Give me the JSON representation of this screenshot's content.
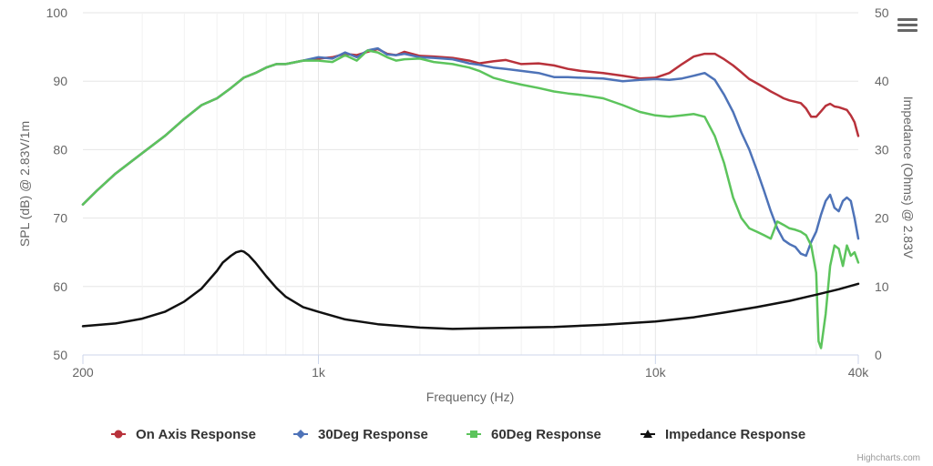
{
  "chart_data": {
    "type": "line",
    "xlabel": "Frequency (Hz)",
    "ylabel": "SPL (dB) @ 2.83V/1m",
    "y2label": "Impedance (Ohms) @ 2.83V",
    "x_scale": "log",
    "xlim": [
      200,
      40000
    ],
    "ylim": [
      50,
      100
    ],
    "y2lim": [
      0,
      50
    ],
    "x_ticks": [
      200,
      1000,
      10000,
      40000
    ],
    "x_tick_labels": [
      "200",
      "1k",
      "10k",
      "40k"
    ],
    "y_ticks": [
      50,
      60,
      70,
      80,
      90,
      100
    ],
    "y2_ticks": [
      0,
      10,
      20,
      30,
      40,
      50
    ],
    "grid": "horizontal",
    "legend": "bottom",
    "series": [
      {
        "name": "On Axis Response",
        "color": "#b8323b",
        "axis": "left",
        "marker": "circle",
        "x": [
          200,
          220,
          250,
          300,
          350,
          400,
          450,
          500,
          550,
          600,
          650,
          700,
          750,
          800,
          900,
          1000,
          1100,
          1200,
          1300,
          1400,
          1500,
          1600,
          1700,
          1800,
          2000,
          2200,
          2500,
          2800,
          3000,
          3300,
          3600,
          4000,
          4500,
          5000,
          5500,
          6000,
          7000,
          8000,
          9000,
          10000,
          11000,
          12000,
          13000,
          14000,
          15000,
          16000,
          17000,
          18000,
          19000,
          20000,
          21000,
          22000,
          23000,
          24000,
          25000,
          26000,
          27000,
          28000,
          29000,
          30000,
          31000,
          32000,
          33000,
          34000,
          35000,
          36000,
          37000,
          38000,
          39000,
          40000
        ],
        "y": [
          72,
          74,
          76.5,
          79.5,
          82,
          84.5,
          86.5,
          87.5,
          89,
          90.5,
          91.2,
          92,
          92.5,
          92.5,
          93,
          93.3,
          93.5,
          94,
          93.8,
          94.3,
          94.7,
          94,
          93.8,
          94.3,
          93.7,
          93.6,
          93.4,
          93,
          92.6,
          92.9,
          93.1,
          92.5,
          92.6,
          92.3,
          91.8,
          91.5,
          91.2,
          90.8,
          90.4,
          90.5,
          91.2,
          92.5,
          93.6,
          94,
          94,
          93.2,
          92.3,
          91.3,
          90.3,
          89.7,
          89.1,
          88.5,
          88,
          87.5,
          87.2,
          87,
          86.8,
          86,
          84.8,
          84.8,
          85.6,
          86.4,
          86.7,
          86.3,
          86.2,
          86,
          85.8,
          85,
          84,
          82
        ]
      },
      {
        "name": "30Deg Response",
        "color": "#4e73b8",
        "axis": "left",
        "marker": "diamond",
        "x": [
          200,
          220,
          250,
          300,
          350,
          400,
          450,
          500,
          550,
          600,
          650,
          700,
          750,
          800,
          900,
          1000,
          1100,
          1200,
          1300,
          1400,
          1500,
          1600,
          1700,
          1800,
          2000,
          2200,
          2500,
          2800,
          3000,
          3300,
          3600,
          4000,
          4500,
          5000,
          5500,
          6000,
          7000,
          8000,
          9000,
          10000,
          11000,
          12000,
          13000,
          14000,
          15000,
          16000,
          17000,
          18000,
          19000,
          20000,
          21000,
          22000,
          23000,
          24000,
          25000,
          26000,
          27000,
          28000,
          29000,
          30000,
          31000,
          32000,
          33000,
          34000,
          35000,
          36000,
          37000,
          38000,
          39000,
          40000
        ],
        "y": [
          72,
          74,
          76.5,
          79.5,
          82,
          84.5,
          86.5,
          87.5,
          89,
          90.5,
          91.2,
          92,
          92.5,
          92.5,
          93,
          93.5,
          93.3,
          94.2,
          93.5,
          94.5,
          94.8,
          93.9,
          93.8,
          94,
          93.5,
          93.4,
          93.2,
          92.6,
          92.4,
          92,
          91.8,
          91.5,
          91.2,
          90.6,
          90.6,
          90.5,
          90.4,
          90,
          90.2,
          90.3,
          90.2,
          90.4,
          90.8,
          91.2,
          90.2,
          88,
          85.5,
          82.5,
          80,
          77,
          74,
          71,
          68.5,
          66.8,
          66.2,
          65.8,
          64.8,
          64.5,
          66.5,
          68,
          70.5,
          72.5,
          73.4,
          71.5,
          71,
          72.5,
          73,
          72.5,
          70,
          67
        ]
      },
      {
        "name": "60Deg Response",
        "color": "#5cc45c",
        "axis": "left",
        "marker": "square",
        "x": [
          200,
          220,
          250,
          300,
          350,
          400,
          450,
          500,
          550,
          600,
          650,
          700,
          750,
          800,
          900,
          1000,
          1100,
          1200,
          1300,
          1400,
          1500,
          1600,
          1700,
          1800,
          2000,
          2200,
          2500,
          2800,
          3000,
          3300,
          3600,
          4000,
          4500,
          5000,
          5500,
          6000,
          7000,
          8000,
          9000,
          10000,
          11000,
          12000,
          13000,
          14000,
          15000,
          16000,
          17000,
          18000,
          19000,
          20000,
          21000,
          22000,
          23000,
          24000,
          25000,
          26000,
          27000,
          28000,
          29000,
          30000,
          30500,
          31000,
          32000,
          33000,
          34000,
          35000,
          36000,
          37000,
          38000,
          39000,
          40000
        ],
        "y": [
          72,
          74,
          76.5,
          79.5,
          82,
          84.5,
          86.5,
          87.5,
          89,
          90.5,
          91.2,
          92,
          92.5,
          92.5,
          93,
          93,
          92.8,
          93.8,
          93,
          94.5,
          94.2,
          93.5,
          93,
          93.2,
          93.3,
          92.8,
          92.5,
          92,
          91.5,
          90.5,
          90,
          89.5,
          89,
          88.5,
          88.2,
          88,
          87.5,
          86.5,
          85.5,
          85,
          84.8,
          85,
          85.2,
          84.8,
          82,
          78,
          73,
          70,
          68.5,
          68,
          67.5,
          67,
          69.5,
          69,
          68.5,
          68.3,
          68,
          67.5,
          66,
          62,
          52,
          51,
          56,
          63,
          66,
          65.5,
          63,
          66,
          64.5,
          65,
          63.5
        ]
      },
      {
        "name": "Impedance Response",
        "color": "#111111",
        "axis": "right",
        "marker": "triangle",
        "x": [
          200,
          250,
          300,
          350,
          400,
          450,
          500,
          520,
          550,
          570,
          590,
          600,
          620,
          650,
          700,
          750,
          800,
          900,
          1000,
          1200,
          1500,
          2000,
          2500,
          3000,
          4000,
          5000,
          7000,
          10000,
          13000,
          16000,
          20000,
          25000,
          30000,
          35000,
          40000
        ],
        "y": [
          4.2,
          4.6,
          5.3,
          6.3,
          7.8,
          9.7,
          12.3,
          13.5,
          14.5,
          15,
          15.2,
          15.1,
          14.6,
          13.5,
          11.5,
          9.8,
          8.5,
          7,
          6.3,
          5.2,
          4.5,
          4,
          3.8,
          3.9,
          4,
          4.1,
          4.4,
          4.9,
          5.5,
          6.2,
          7,
          7.9,
          8.8,
          9.6,
          10.4
        ]
      }
    ]
  },
  "credits": "Highcharts.com",
  "menu_icon": "hamburger-menu-icon"
}
